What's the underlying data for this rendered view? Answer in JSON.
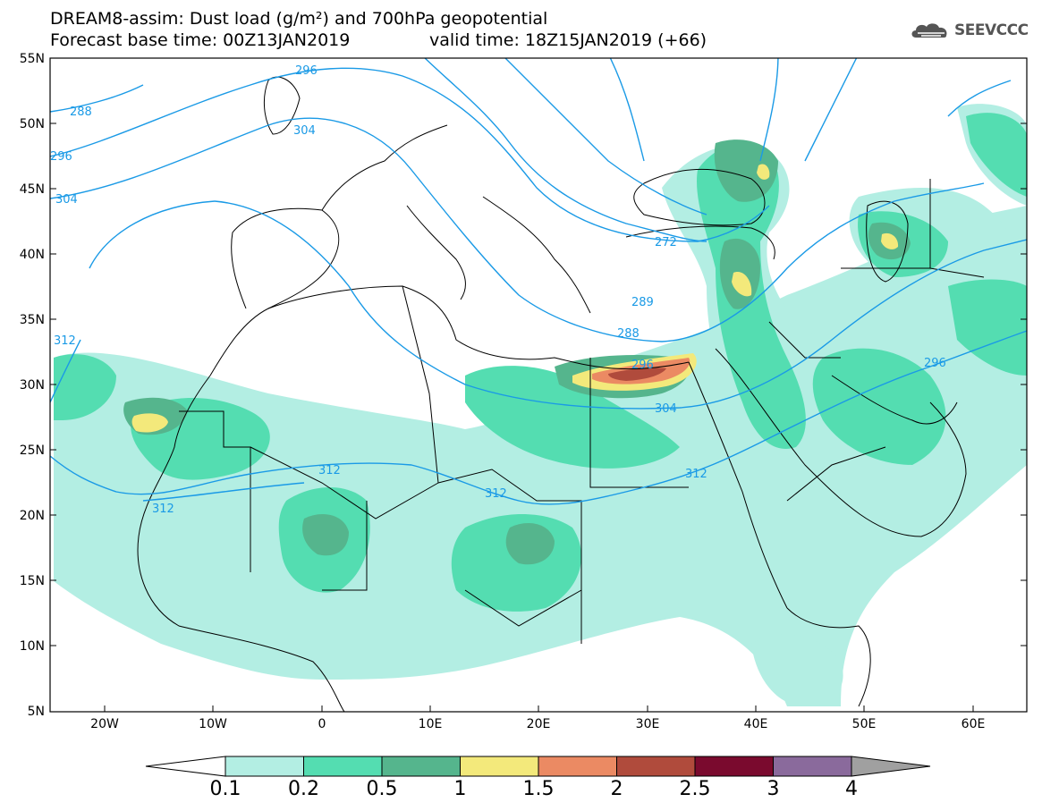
{
  "header": {
    "title_line1": "DREAM8-assim: Dust load (g/m²) and 700hPa geopotential",
    "title_line2": "Forecast base time: 00Z13JAN2019",
    "title_valid": "valid time: 18Z15JAN2019 (+66)",
    "logo_text": "SEEVCCC",
    "logo_icon": "cloud-icon"
  },
  "map": {
    "lon_range": [
      -25,
      65
    ],
    "lat_range": [
      5,
      55
    ],
    "lat_labels": [
      "55N",
      "50N",
      "45N",
      "40N",
      "35N",
      "30N",
      "25N",
      "20N",
      "15N",
      "10N",
      "5N"
    ],
    "lon_labels": [
      "20W",
      "10W",
      "0",
      "10E",
      "20E",
      "30E",
      "40E",
      "50E",
      "60E"
    ],
    "contour_color": "#1a9ae6",
    "contour_labels": [
      "296",
      "288",
      "304",
      "296",
      "304",
      "272",
      "289",
      "288",
      "296",
      "304",
      "312",
      "312",
      "312",
      "312",
      "312",
      "296"
    ]
  },
  "colorbar": {
    "levels": [
      "0.1",
      "0.2",
      "0.5",
      "1",
      "1.5",
      "2",
      "2.5",
      "3",
      "4"
    ],
    "colors": [
      "#b3eee3",
      "#54ddb1",
      "#55b58d",
      "#f3e97b",
      "#eb8a63",
      "#b04b3c",
      "#7a0a2e",
      "#8a6a9c"
    ],
    "under_color": "#ffffff",
    "over_color": "#a0a0a0"
  }
}
